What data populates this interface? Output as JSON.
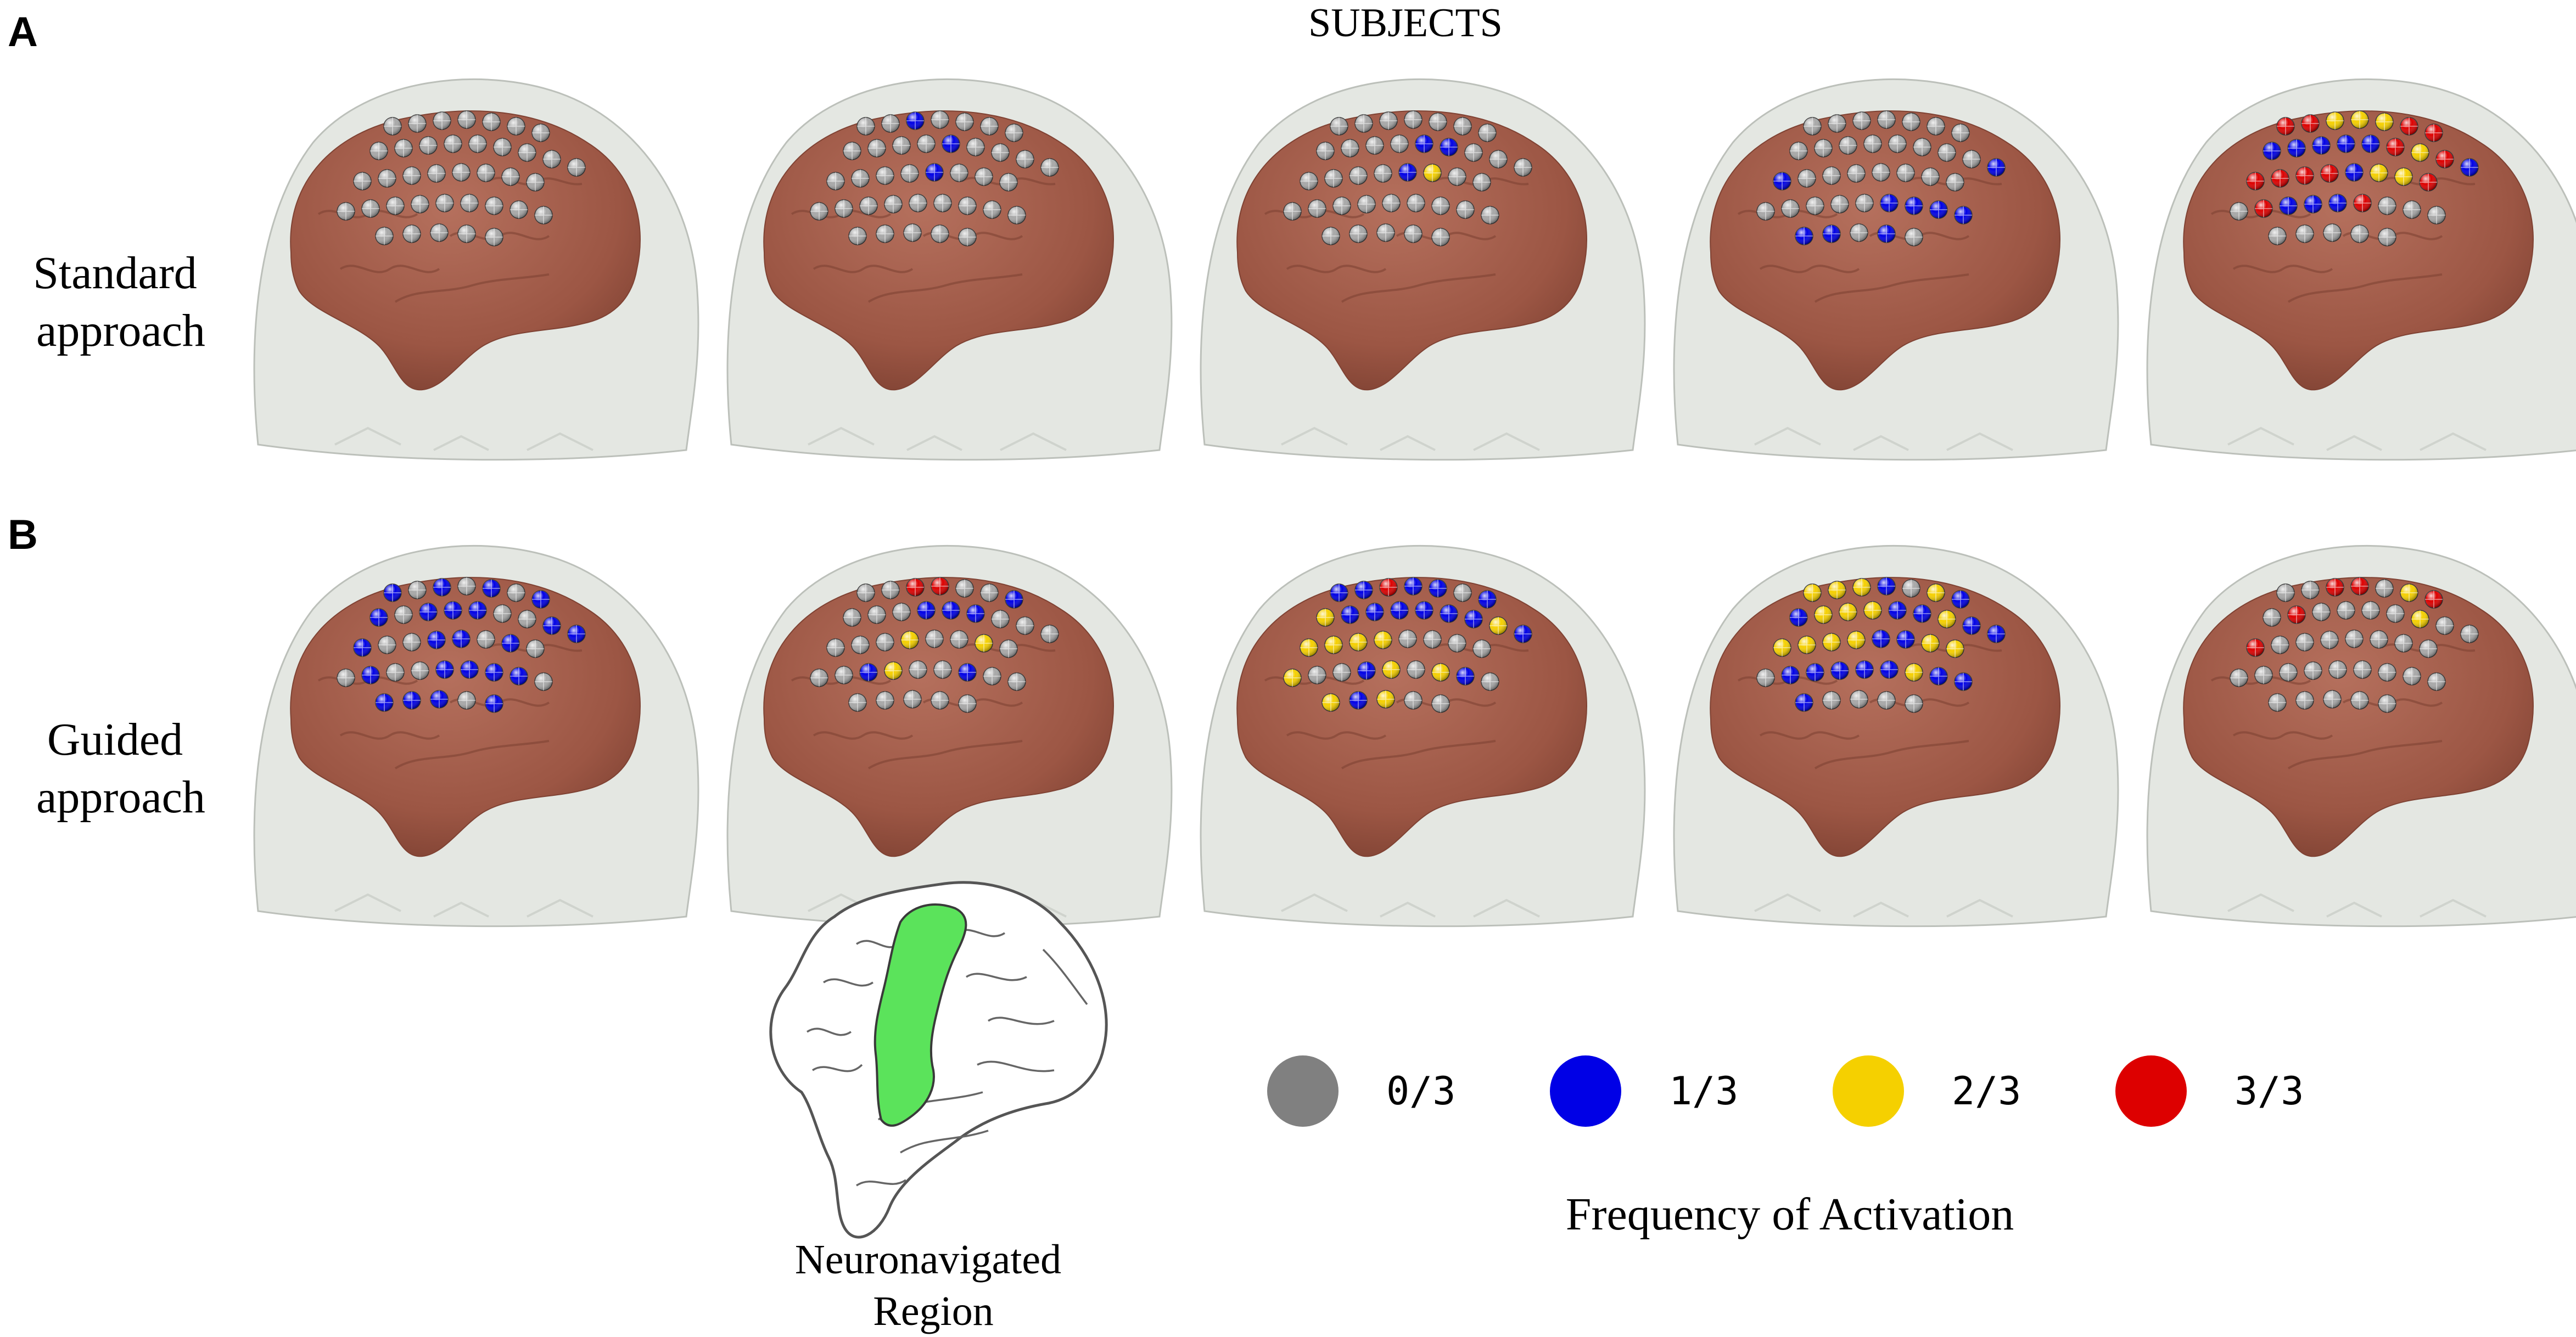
{
  "panels": [
    {
      "letter": "A",
      "row_label": [
        "Standard",
        "approach"
      ]
    },
    {
      "letter": "B",
      "row_label": [
        "Guided",
        "approach"
      ]
    }
  ],
  "header": {
    "title": "SUBJECTS"
  },
  "inset": {
    "caption": [
      "Neuronavigated",
      "Region"
    ],
    "highlight_color": "#5be35b"
  },
  "legend": {
    "title": "Frequency of Activation",
    "items": [
      {
        "label": "0/3",
        "color": "#808080"
      },
      {
        "label": "1/3",
        "color": "#0000e6"
      },
      {
        "label": "2/3",
        "color": "#f5d000"
      },
      {
        "label": "3/3",
        "color": "#dd0000"
      }
    ]
  },
  "colors": {
    "head": "#e3e6e1",
    "head_edge": "#b9bdb7",
    "brain": "#a05a48",
    "brain_dark": "#7f4233",
    "frequency_code": [
      "#a8a8a8",
      "#0000e6",
      "#f5d000",
      "#dd0000"
    ]
  },
  "stimulation_maps": {
    "standard": [
      "00000000000000000000000000000000000000",
      "00100000000100000000100000000000000000",
      "00000000000110000000120000000000000000",
      "00000000000000011000000000000111111010",
      "33222331111132313333122303111300000000"
    ],
    "guided": [
      "10101011011100111001101001001111011101",
      "00330010001110000002002000120010000000",
      "11311012111111212222000020012021021200",
      "22210211222112112222112201111121110000",
      "00330230300002003000000000000000000000"
    ]
  }
}
